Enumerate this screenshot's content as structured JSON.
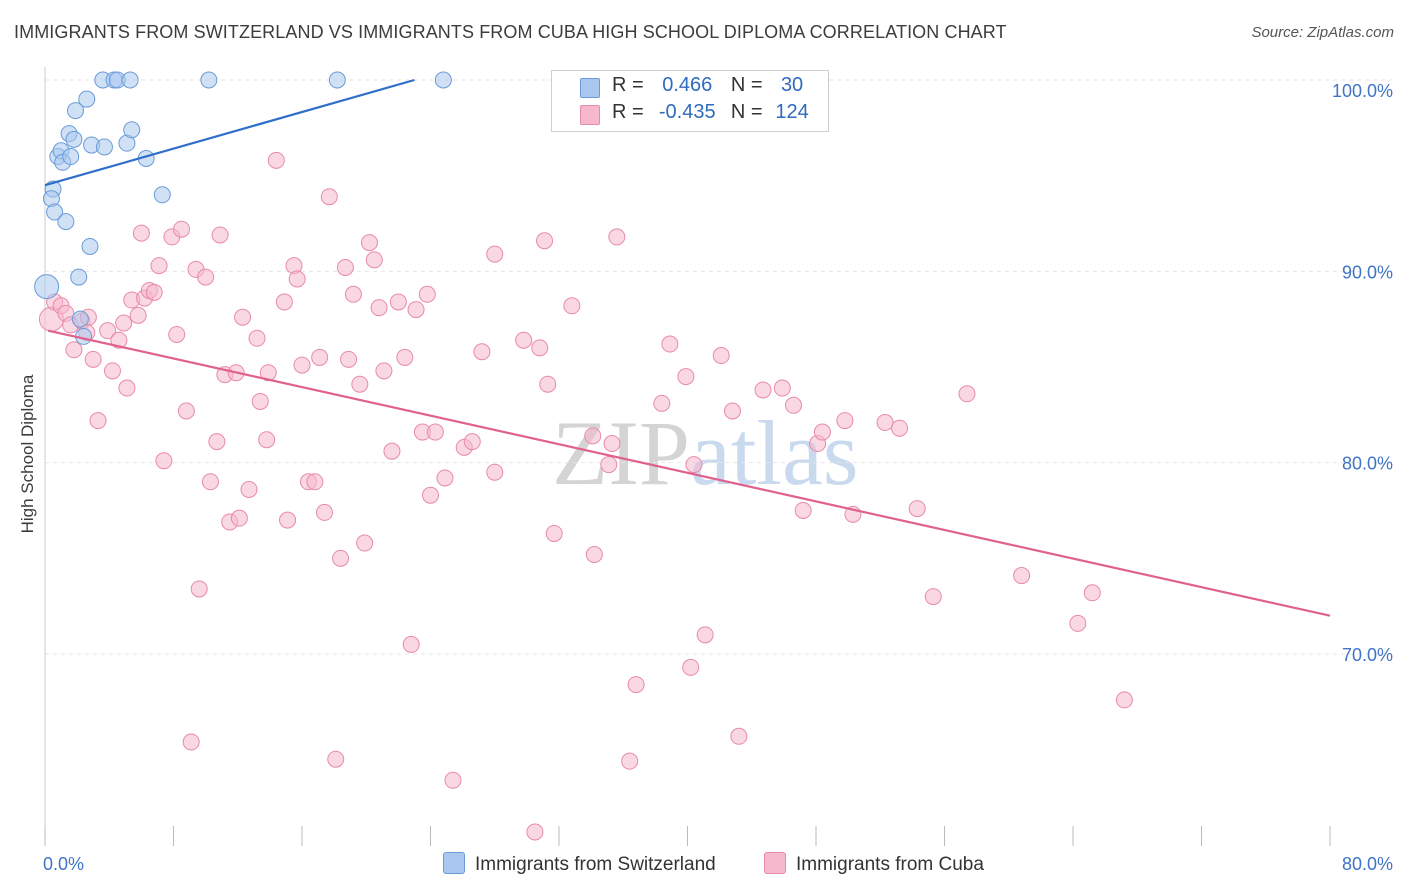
{
  "title": "IMMIGRANTS FROM SWITZERLAND VS IMMIGRANTS FROM CUBA HIGH SCHOOL DIPLOMA CORRELATION CHART",
  "source": "Source: ZipAtlas.com",
  "watermark": {
    "zip": "ZIP",
    "atlas": "atlas"
  },
  "legend": {
    "rows": [
      {
        "r_label": "R =",
        "r_value": "0.466",
        "n_label": "N =",
        "n_value": "30"
      },
      {
        "r_label": "R =",
        "r_value": "-0.435",
        "n_label": "N =",
        "n_value": "124"
      }
    ]
  },
  "chart_data": {
    "type": "scatter",
    "title": "IMMIGRANTS FROM SWITZERLAND VS IMMIGRANTS FROM CUBA HIGH SCHOOL DIPLOMA CORRELATION CHART",
    "xlabel": "",
    "ylabel": "High School Diploma",
    "xlim": [
      0,
      80
    ],
    "ylim": [
      60.5,
      102
    ],
    "x_tick_labels": [
      "0.0%",
      "80.0%"
    ],
    "y_ticks": [
      70,
      80,
      90,
      100
    ],
    "y_tick_labels": [
      "70.0%",
      "80.0%",
      "90.0%",
      "100.0%"
    ],
    "grid": true,
    "legend_position": "top-center",
    "colors": {
      "switzerland_fill": "#aac8ef",
      "switzerland_stroke": "#6a9bd8",
      "switzerland_line": "#2f6fc9",
      "cuba_fill": "#f6b8cc",
      "cuba_stroke": "#e88aaa",
      "cuba_line": "#e0608e",
      "grid": "#e6e6e6",
      "axis_text": "#3f74c6"
    },
    "series": [
      {
        "name": "Immigrants from Switzerland",
        "r": 0.466,
        "n": 30,
        "trend": {
          "x": [
            0.0,
            23.0
          ],
          "y": [
            94.5,
            100.0
          ]
        },
        "points": [
          {
            "x": 0.1,
            "y": 89.2,
            "big": true
          },
          {
            "x": 0.5,
            "y": 94.3
          },
          {
            "x": 0.4,
            "y": 93.8
          },
          {
            "x": 0.6,
            "y": 93.1
          },
          {
            "x": 0.8,
            "y": 96.0
          },
          {
            "x": 1.0,
            "y": 96.3
          },
          {
            "x": 1.1,
            "y": 95.7
          },
          {
            "x": 1.3,
            "y": 92.6
          },
          {
            "x": 1.5,
            "y": 97.2
          },
          {
            "x": 1.6,
            "y": 96.0
          },
          {
            "x": 1.9,
            "y": 98.4
          },
          {
            "x": 1.8,
            "y": 96.9
          },
          {
            "x": 2.1,
            "y": 89.7
          },
          {
            "x": 2.2,
            "y": 87.5
          },
          {
            "x": 2.4,
            "y": 86.6
          },
          {
            "x": 2.6,
            "y": 99.0
          },
          {
            "x": 2.8,
            "y": 91.3
          },
          {
            "x": 2.9,
            "y": 96.6
          },
          {
            "x": 3.7,
            "y": 96.5
          },
          {
            "x": 3.6,
            "y": 100.0
          },
          {
            "x": 4.3,
            "y": 100.0
          },
          {
            "x": 4.5,
            "y": 100.0
          },
          {
            "x": 5.1,
            "y": 96.7
          },
          {
            "x": 5.4,
            "y": 97.4
          },
          {
            "x": 5.3,
            "y": 100.0
          },
          {
            "x": 6.3,
            "y": 95.9
          },
          {
            "x": 7.3,
            "y": 94.0
          },
          {
            "x": 10.2,
            "y": 100.0
          },
          {
            "x": 18.2,
            "y": 100.0
          },
          {
            "x": 24.8,
            "y": 100.0
          }
        ]
      },
      {
        "name": "Immigrants from Cuba",
        "r": -0.435,
        "n": 124,
        "trend": {
          "x": [
            0.2,
            80.0
          ],
          "y": [
            86.9,
            72.0
          ]
        },
        "points": [
          {
            "x": 0.4,
            "y": 87.5,
            "big": true
          },
          {
            "x": 0.6,
            "y": 88.4
          },
          {
            "x": 1.0,
            "y": 88.2
          },
          {
            "x": 1.3,
            "y": 87.8
          },
          {
            "x": 1.6,
            "y": 87.2
          },
          {
            "x": 1.8,
            "y": 85.9
          },
          {
            "x": 2.3,
            "y": 87.4
          },
          {
            "x": 2.6,
            "y": 86.8
          },
          {
            "x": 2.7,
            "y": 87.6
          },
          {
            "x": 3.0,
            "y": 85.4
          },
          {
            "x": 3.3,
            "y": 82.2
          },
          {
            "x": 3.9,
            "y": 86.9
          },
          {
            "x": 4.2,
            "y": 84.8
          },
          {
            "x": 4.6,
            "y": 86.4
          },
          {
            "x": 4.9,
            "y": 87.3
          },
          {
            "x": 5.1,
            "y": 83.9
          },
          {
            "x": 5.4,
            "y": 88.5
          },
          {
            "x": 5.8,
            "y": 87.7
          },
          {
            "x": 6.0,
            "y": 92.0
          },
          {
            "x": 6.2,
            "y": 88.6
          },
          {
            "x": 6.5,
            "y": 89.0
          },
          {
            "x": 6.8,
            "y": 88.9
          },
          {
            "x": 7.1,
            "y": 90.3
          },
          {
            "x": 7.4,
            "y": 80.1
          },
          {
            "x": 7.9,
            "y": 91.8
          },
          {
            "x": 8.2,
            "y": 86.7
          },
          {
            "x": 8.5,
            "y": 92.2
          },
          {
            "x": 8.8,
            "y": 82.7
          },
          {
            "x": 9.1,
            "y": 65.4
          },
          {
            "x": 9.4,
            "y": 90.1
          },
          {
            "x": 9.6,
            "y": 73.4
          },
          {
            "x": 10.0,
            "y": 89.7
          },
          {
            "x": 10.3,
            "y": 79.0
          },
          {
            "x": 10.7,
            "y": 81.1
          },
          {
            "x": 10.9,
            "y": 91.9
          },
          {
            "x": 11.2,
            "y": 84.6
          },
          {
            "x": 11.5,
            "y": 76.9
          },
          {
            "x": 11.9,
            "y": 84.7
          },
          {
            "x": 12.1,
            "y": 77.1
          },
          {
            "x": 12.3,
            "y": 87.6
          },
          {
            "x": 12.7,
            "y": 78.6
          },
          {
            "x": 13.2,
            "y": 86.5
          },
          {
            "x": 13.4,
            "y": 83.2
          },
          {
            "x": 13.8,
            "y": 81.2
          },
          {
            "x": 13.9,
            "y": 84.7
          },
          {
            "x": 14.4,
            "y": 95.8
          },
          {
            "x": 14.9,
            "y": 88.4
          },
          {
            "x": 15.1,
            "y": 77.0
          },
          {
            "x": 15.5,
            "y": 90.3
          },
          {
            "x": 15.7,
            "y": 89.6
          },
          {
            "x": 16.0,
            "y": 85.1
          },
          {
            "x": 16.4,
            "y": 79.0
          },
          {
            "x": 16.8,
            "y": 79.0
          },
          {
            "x": 17.1,
            "y": 85.5
          },
          {
            "x": 17.4,
            "y": 77.4
          },
          {
            "x": 17.7,
            "y": 93.9
          },
          {
            "x": 18.1,
            "y": 64.5
          },
          {
            "x": 18.4,
            "y": 75.0
          },
          {
            "x": 18.7,
            "y": 90.2
          },
          {
            "x": 18.9,
            "y": 85.4
          },
          {
            "x": 19.2,
            "y": 88.8
          },
          {
            "x": 19.6,
            "y": 84.1
          },
          {
            "x": 19.9,
            "y": 75.8
          },
          {
            "x": 20.2,
            "y": 91.5
          },
          {
            "x": 20.5,
            "y": 90.6
          },
          {
            "x": 20.8,
            "y": 88.1
          },
          {
            "x": 21.1,
            "y": 84.8
          },
          {
            "x": 21.6,
            "y": 80.6
          },
          {
            "x": 22.0,
            "y": 88.4
          },
          {
            "x": 22.4,
            "y": 85.5
          },
          {
            "x": 22.8,
            "y": 70.5
          },
          {
            "x": 23.1,
            "y": 88.0
          },
          {
            "x": 23.5,
            "y": 81.6
          },
          {
            "x": 23.8,
            "y": 88.8
          },
          {
            "x": 24.0,
            "y": 78.3
          },
          {
            "x": 24.3,
            "y": 81.6
          },
          {
            "x": 24.9,
            "y": 79.2
          },
          {
            "x": 25.4,
            "y": 63.4
          },
          {
            "x": 26.1,
            "y": 80.8
          },
          {
            "x": 26.6,
            "y": 81.1
          },
          {
            "x": 27.2,
            "y": 85.8
          },
          {
            "x": 28.0,
            "y": 90.9
          },
          {
            "x": 28.0,
            "y": 79.5
          },
          {
            "x": 29.8,
            "y": 86.4
          },
          {
            "x": 30.5,
            "y": 60.7
          },
          {
            "x": 30.8,
            "y": 86.0
          },
          {
            "x": 31.1,
            "y": 91.6
          },
          {
            "x": 31.3,
            "y": 84.1
          },
          {
            "x": 31.7,
            "y": 76.3
          },
          {
            "x": 32.8,
            "y": 88.2
          },
          {
            "x": 34.1,
            "y": 81.4
          },
          {
            "x": 34.2,
            "y": 75.2
          },
          {
            "x": 35.1,
            "y": 79.9
          },
          {
            "x": 35.3,
            "y": 81.0
          },
          {
            "x": 35.6,
            "y": 91.8
          },
          {
            "x": 36.4,
            "y": 64.4
          },
          {
            "x": 36.8,
            "y": 68.4
          },
          {
            "x": 38.4,
            "y": 83.1
          },
          {
            "x": 38.9,
            "y": 86.2
          },
          {
            "x": 39.9,
            "y": 84.5
          },
          {
            "x": 40.2,
            "y": 69.3
          },
          {
            "x": 40.4,
            "y": 79.9
          },
          {
            "x": 41.1,
            "y": 71.0
          },
          {
            "x": 42.1,
            "y": 85.6
          },
          {
            "x": 42.8,
            "y": 82.7
          },
          {
            "x": 43.2,
            "y": 65.7
          },
          {
            "x": 44.7,
            "y": 83.8
          },
          {
            "x": 45.9,
            "y": 83.9
          },
          {
            "x": 46.6,
            "y": 83.0
          },
          {
            "x": 47.2,
            "y": 77.5
          },
          {
            "x": 48.1,
            "y": 81.0
          },
          {
            "x": 48.4,
            "y": 81.6
          },
          {
            "x": 49.8,
            "y": 82.2
          },
          {
            "x": 50.3,
            "y": 77.3
          },
          {
            "x": 52.3,
            "y": 82.1
          },
          {
            "x": 53.2,
            "y": 81.8
          },
          {
            "x": 54.3,
            "y": 77.6
          },
          {
            "x": 55.3,
            "y": 73.0
          },
          {
            "x": 57.4,
            "y": 83.6
          },
          {
            "x": 60.8,
            "y": 74.1
          },
          {
            "x": 64.3,
            "y": 71.6
          },
          {
            "x": 65.2,
            "y": 73.2
          },
          {
            "x": 67.2,
            "y": 67.6
          }
        ]
      }
    ]
  },
  "bottom_legend": [
    {
      "label": "Immigrants from Switzerland"
    },
    {
      "label": "Immigrants from Cuba"
    }
  ]
}
